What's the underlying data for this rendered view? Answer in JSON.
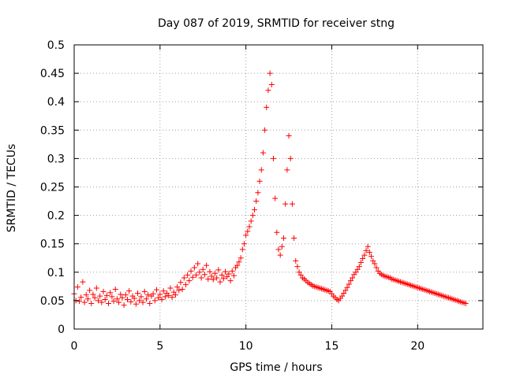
{
  "chart_data": {
    "type": "scatter",
    "title": "Day 087 of 2019, SRMTID for receiver stng",
    "xlabel": "GPS time / hours",
    "ylabel": "SRMTID / TECUs",
    "xlim": [
      0,
      23.8
    ],
    "ylim": [
      0,
      0.5
    ],
    "x_ticks": [
      0,
      5,
      10,
      15,
      20
    ],
    "x_tick_labels": [
      "0",
      "5",
      "10",
      "15",
      "20"
    ],
    "y_ticks": [
      0,
      0.05,
      0.1,
      0.15,
      0.2,
      0.25,
      0.3,
      0.35,
      0.4,
      0.45,
      0.5
    ],
    "y_tick_labels": [
      "0",
      "0.05",
      "0.1",
      "0.15",
      "0.2",
      "0.25",
      "0.3",
      "0.35",
      "0.4",
      "0.45",
      "0.5"
    ],
    "grid": true,
    "marker": "+",
    "color": "#ff0000",
    "series": [
      {
        "name": "SRMTID",
        "x": [
          0.0,
          0.1,
          0.2,
          0.3,
          0.4,
          0.5,
          0.6,
          0.7,
          0.8,
          0.9,
          1.0,
          1.1,
          1.2,
          1.3,
          1.4,
          1.5,
          1.6,
          1.7,
          1.8,
          1.9,
          2.0,
          2.1,
          2.2,
          2.3,
          2.4,
          2.5,
          2.6,
          2.7,
          2.8,
          2.9,
          3.0,
          3.1,
          3.2,
          3.3,
          3.4,
          3.5,
          3.6,
          3.7,
          3.8,
          3.9,
          4.0,
          4.1,
          4.2,
          4.3,
          4.4,
          4.5,
          4.6,
          4.7,
          4.8,
          4.9,
          5.0,
          5.1,
          5.2,
          5.3,
          5.4,
          5.5,
          5.6,
          5.7,
          5.8,
          5.9,
          6.0,
          6.1,
          6.2,
          6.3,
          6.4,
          6.5,
          6.6,
          6.7,
          6.8,
          6.9,
          7.0,
          7.1,
          7.2,
          7.3,
          7.4,
          7.5,
          7.6,
          7.7,
          7.8,
          7.9,
          8.0,
          8.1,
          8.2,
          8.3,
          8.4,
          8.5,
          8.6,
          8.7,
          8.8,
          8.9,
          9.0,
          9.1,
          9.2,
          9.3,
          9.4,
          9.5,
          9.6,
          9.7,
          9.8,
          9.9,
          10.0,
          10.1,
          10.2,
          10.3,
          10.4,
          10.5,
          10.6,
          10.7,
          10.8,
          10.9,
          11.0,
          11.1,
          11.2,
          11.3,
          11.4,
          11.5,
          11.6,
          11.7,
          11.8,
          11.9,
          12.0,
          12.1,
          12.2,
          12.3,
          12.4,
          12.5,
          12.6,
          12.7,
          12.8,
          12.9,
          13.0,
          13.1,
          13.2,
          13.3,
          13.4,
          13.5,
          13.6,
          13.7,
          13.8,
          13.9,
          14.0,
          14.1,
          14.2,
          14.3,
          14.4,
          14.5,
          14.6,
          14.7,
          14.8,
          14.9,
          15.0,
          15.1,
          15.2,
          15.3,
          15.4,
          15.5,
          15.6,
          15.7,
          15.8,
          15.9,
          16.0,
          16.1,
          16.2,
          16.3,
          16.4,
          16.5,
          16.6,
          16.7,
          16.8,
          16.9,
          17.0,
          17.1,
          17.2,
          17.3,
          17.4,
          17.5,
          17.6,
          17.7,
          17.8,
          17.9,
          18.0,
          18.1,
          18.2,
          18.3,
          18.4,
          18.5,
          18.6,
          18.7,
          18.8,
          18.9,
          19.0,
          19.1,
          19.2,
          19.3,
          19.4,
          19.5,
          19.6,
          19.7,
          19.8,
          19.9,
          20.0,
          20.1,
          20.2,
          20.3,
          20.4,
          20.5,
          20.6,
          20.7,
          20.8,
          20.9,
          21.0,
          21.1,
          21.2,
          21.3,
          21.4,
          21.5,
          21.6,
          21.7,
          21.8,
          21.9,
          22.0,
          22.1,
          22.2,
          22.3,
          22.4,
          22.5,
          22.6,
          22.7,
          22.8
        ],
        "y": [
          0.062,
          0.05,
          0.074,
          0.049,
          0.056,
          0.083,
          0.047,
          0.06,
          0.053,
          0.068,
          0.045,
          0.061,
          0.055,
          0.072,
          0.05,
          0.058,
          0.047,
          0.066,
          0.052,
          0.059,
          0.045,
          0.064,
          0.057,
          0.049,
          0.07,
          0.053,
          0.047,
          0.061,
          0.055,
          0.042,
          0.06,
          0.052,
          0.067,
          0.048,
          0.058,
          0.054,
          0.044,
          0.063,
          0.05,
          0.057,
          0.047,
          0.066,
          0.053,
          0.06,
          0.045,
          0.058,
          0.062,
          0.05,
          0.069,
          0.055,
          0.061,
          0.052,
          0.067,
          0.057,
          0.063,
          0.059,
          0.072,
          0.056,
          0.065,
          0.06,
          0.074,
          0.068,
          0.082,
          0.07,
          0.09,
          0.078,
          0.095,
          0.085,
          0.102,
          0.091,
          0.108,
          0.095,
          0.115,
          0.1,
          0.09,
          0.105,
          0.096,
          0.112,
          0.088,
          0.101,
          0.093,
          0.087,
          0.098,
          0.09,
          0.104,
          0.083,
          0.095,
          0.089,
          0.101,
          0.092,
          0.097,
          0.085,
          0.102,
          0.094,
          0.108,
          0.112,
          0.118,
          0.125,
          0.14,
          0.15,
          0.165,
          0.172,
          0.18,
          0.19,
          0.2,
          0.21,
          0.225,
          0.24,
          0.26,
          0.28,
          0.31,
          0.35,
          0.39,
          0.42,
          0.45,
          0.43,
          0.3,
          0.23,
          0.17,
          0.14,
          0.13,
          0.145,
          0.16,
          0.22,
          0.28,
          0.34,
          0.3,
          0.22,
          0.16,
          0.12,
          0.11,
          0.1,
          0.095,
          0.09,
          0.088,
          0.085,
          0.082,
          0.08,
          0.078,
          0.076,
          0.075,
          0.074,
          0.073,
          0.072,
          0.071,
          0.07,
          0.069,
          0.068,
          0.067,
          0.066,
          0.062,
          0.058,
          0.055,
          0.052,
          0.05,
          0.054,
          0.058,
          0.063,
          0.068,
          0.073,
          0.079,
          0.085,
          0.09,
          0.096,
          0.1,
          0.105,
          0.11,
          0.117,
          0.124,
          0.13,
          0.138,
          0.145,
          0.135,
          0.128,
          0.12,
          0.115,
          0.108,
          0.102,
          0.098,
          0.096,
          0.094,
          0.093,
          0.092,
          0.091,
          0.09,
          0.088,
          0.087,
          0.086,
          0.085,
          0.084,
          0.083,
          0.082,
          0.081,
          0.08,
          0.079,
          0.078,
          0.077,
          0.076,
          0.075,
          0.074,
          0.073,
          0.072,
          0.071,
          0.07,
          0.069,
          0.068,
          0.067,
          0.066,
          0.065,
          0.064,
          0.063,
          0.062,
          0.061,
          0.06,
          0.059,
          0.058,
          0.057,
          0.056,
          0.055,
          0.054,
          0.053,
          0.052,
          0.051,
          0.05,
          0.049,
          0.048,
          0.047,
          0.046,
          0.045
        ]
      }
    ]
  }
}
